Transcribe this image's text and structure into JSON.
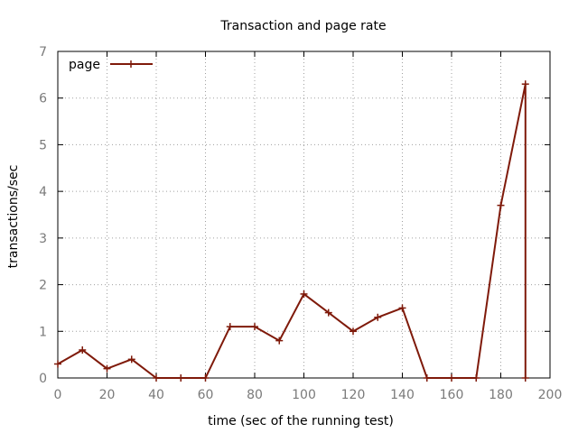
{
  "chart_data": {
    "type": "line",
    "title": "Transaction and page rate",
    "xlabel": "time (sec of the running test)",
    "ylabel": "transactions/sec",
    "xlim": [
      0,
      200
    ],
    "ylim": [
      0,
      7
    ],
    "xticks": [
      0,
      20,
      40,
      60,
      80,
      100,
      120,
      140,
      160,
      180,
      200
    ],
    "yticks": [
      0,
      1,
      2,
      3,
      4,
      5,
      6,
      7
    ],
    "grid": true,
    "legend_position": "top-left",
    "series": [
      {
        "name": "page",
        "color": "#7f1a0a",
        "marker": "plus",
        "x": [
          0,
          10,
          20,
          30,
          40,
          50,
          60,
          70,
          80,
          90,
          100,
          110,
          120,
          130,
          140,
          150,
          160,
          170,
          180,
          190,
          190
        ],
        "y": [
          0.3,
          0.6,
          0.2,
          0.4,
          0,
          0,
          0,
          1.1,
          1.1,
          0.8,
          1.8,
          1.4,
          1.0,
          1.3,
          1.5,
          0,
          0,
          0,
          3.7,
          6.3,
          0
        ]
      }
    ]
  }
}
